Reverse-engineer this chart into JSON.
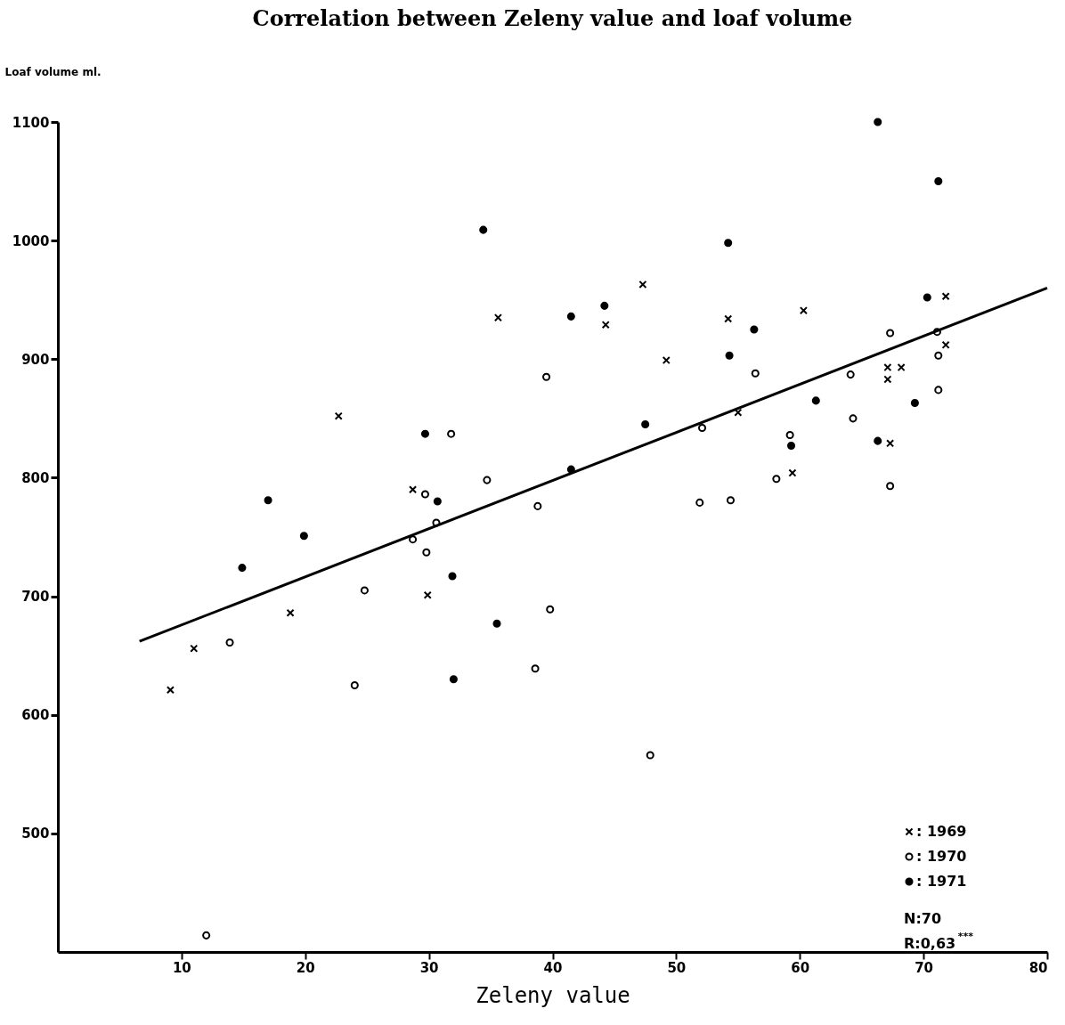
{
  "chart_data": {
    "type": "scatter",
    "title": "Correlation between Zeleny value and loaf volume",
    "xlabel": "Zeleny value",
    "ylabel": "Loaf volume ml.",
    "xlim": [
      0,
      80
    ],
    "xticks": [
      10,
      20,
      30,
      40,
      50,
      60,
      70,
      80
    ],
    "ylim": [
      400,
      1100
    ],
    "yticks": [
      500,
      600,
      700,
      800,
      900,
      1000,
      1100
    ],
    "grid": false,
    "legend": "bottom right",
    "series": [
      {
        "name": ": 1969",
        "color": "#000000",
        "marker": "cross",
        "x": [
          9.1,
          11.0,
          18.8,
          22.7,
          28.7,
          29.9,
          35.6,
          44.3,
          47.3,
          49.2,
          54.2,
          55.0,
          60.3,
          59.4,
          67.3,
          67.1,
          68.2,
          67.1,
          71.8,
          71.8
        ],
        "values": [
          621,
          656,
          686,
          852,
          790,
          701,
          935,
          929,
          963,
          899,
          934,
          855,
          941,
          804,
          829,
          893,
          893,
          883,
          953,
          912
        ]
      },
      {
        "name": ": 1970",
        "color": "#ffffff",
        "marker": "circle",
        "x": [
          12.0,
          13.9,
          24.8,
          24.0,
          28.7,
          29.7,
          29.8,
          30.6,
          31.8,
          34.7,
          38.8,
          38.6,
          39.8,
          39.5,
          47.9,
          52.1,
          51.9,
          54.4,
          58.1,
          59.2,
          64.3,
          67.3,
          71.2,
          56.4,
          64.1,
          67.3,
          71.2,
          71.1
        ],
        "values": [
          414,
          661,
          705,
          625,
          748,
          786,
          737,
          762,
          837,
          798,
          776,
          639,
          689,
          885,
          566,
          842,
          779,
          781,
          799,
          836,
          850,
          793,
          874,
          888,
          887,
          922,
          903,
          923
        ]
      },
      {
        "name": ": 1971",
        "color": "#000000",
        "marker": "circle",
        "x": [
          17.0,
          19.9,
          14.9,
          29.7,
          30.7,
          31.9,
          35.5,
          32.0,
          34.4,
          66.3,
          71.2,
          54.2,
          41.5,
          44.2,
          56.3,
          54.3,
          70.3,
          61.3,
          69.3,
          47.5,
          41.5,
          59.3,
          66.3
        ],
        "values": [
          781,
          751,
          724,
          837,
          780,
          717,
          677,
          630,
          1009,
          1100,
          1050,
          998,
          936,
          945,
          925,
          903,
          952,
          865,
          863,
          845,
          807,
          827,
          831
        ]
      },
      {
        "type": "line",
        "color": "#000000",
        "x": [
          6.6,
          80
        ],
        "values": [
          662,
          960
        ]
      }
    ],
    "annotations": [
      "N:70",
      "R:0,63$^{***}$"
    ]
  }
}
